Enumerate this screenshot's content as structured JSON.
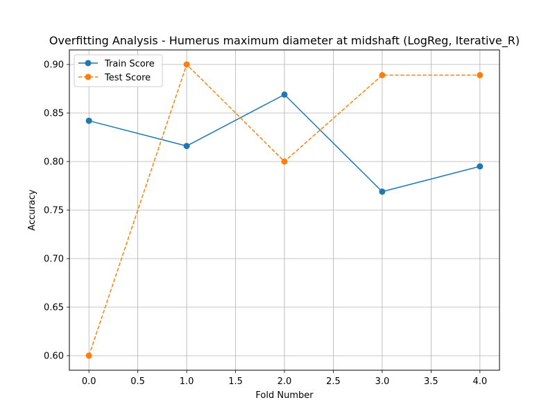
{
  "chart_data": {
    "type": "line",
    "title": "Overfitting Analysis - Humerus maximum diameter at midshaft (LogReg, Iterative_R)",
    "xlabel": "Fold Number",
    "ylabel": "Accuracy",
    "xlim": [
      -0.2,
      4.2
    ],
    "ylim": [
      0.585,
      0.915
    ],
    "x_ticks": [
      0.0,
      0.5,
      1.0,
      1.5,
      2.0,
      2.5,
      3.0,
      3.5,
      4.0
    ],
    "x_tick_labels": [
      "0.0",
      "0.5",
      "1.0",
      "1.5",
      "2.0",
      "2.5",
      "3.0",
      "3.5",
      "4.0"
    ],
    "y_ticks": [
      0.6,
      0.65,
      0.7,
      0.75,
      0.8,
      0.85,
      0.9
    ],
    "y_tick_labels": [
      "0.60",
      "0.65",
      "0.70",
      "0.75",
      "0.80",
      "0.85",
      "0.90"
    ],
    "grid": true,
    "legend_position": "top-left",
    "x": [
      0,
      1,
      2,
      3,
      4
    ],
    "series": [
      {
        "name": "Train Score",
        "values": [
          0.842,
          0.816,
          0.869,
          0.769,
          0.795
        ],
        "color": "#1f77b4",
        "line_style": "solid",
        "marker": "circle"
      },
      {
        "name": "Test Score",
        "values": [
          0.6,
          0.9,
          0.8,
          0.889,
          0.889
        ],
        "color": "#ff7f0e",
        "line_style": "dashed",
        "marker": "circle"
      }
    ]
  }
}
